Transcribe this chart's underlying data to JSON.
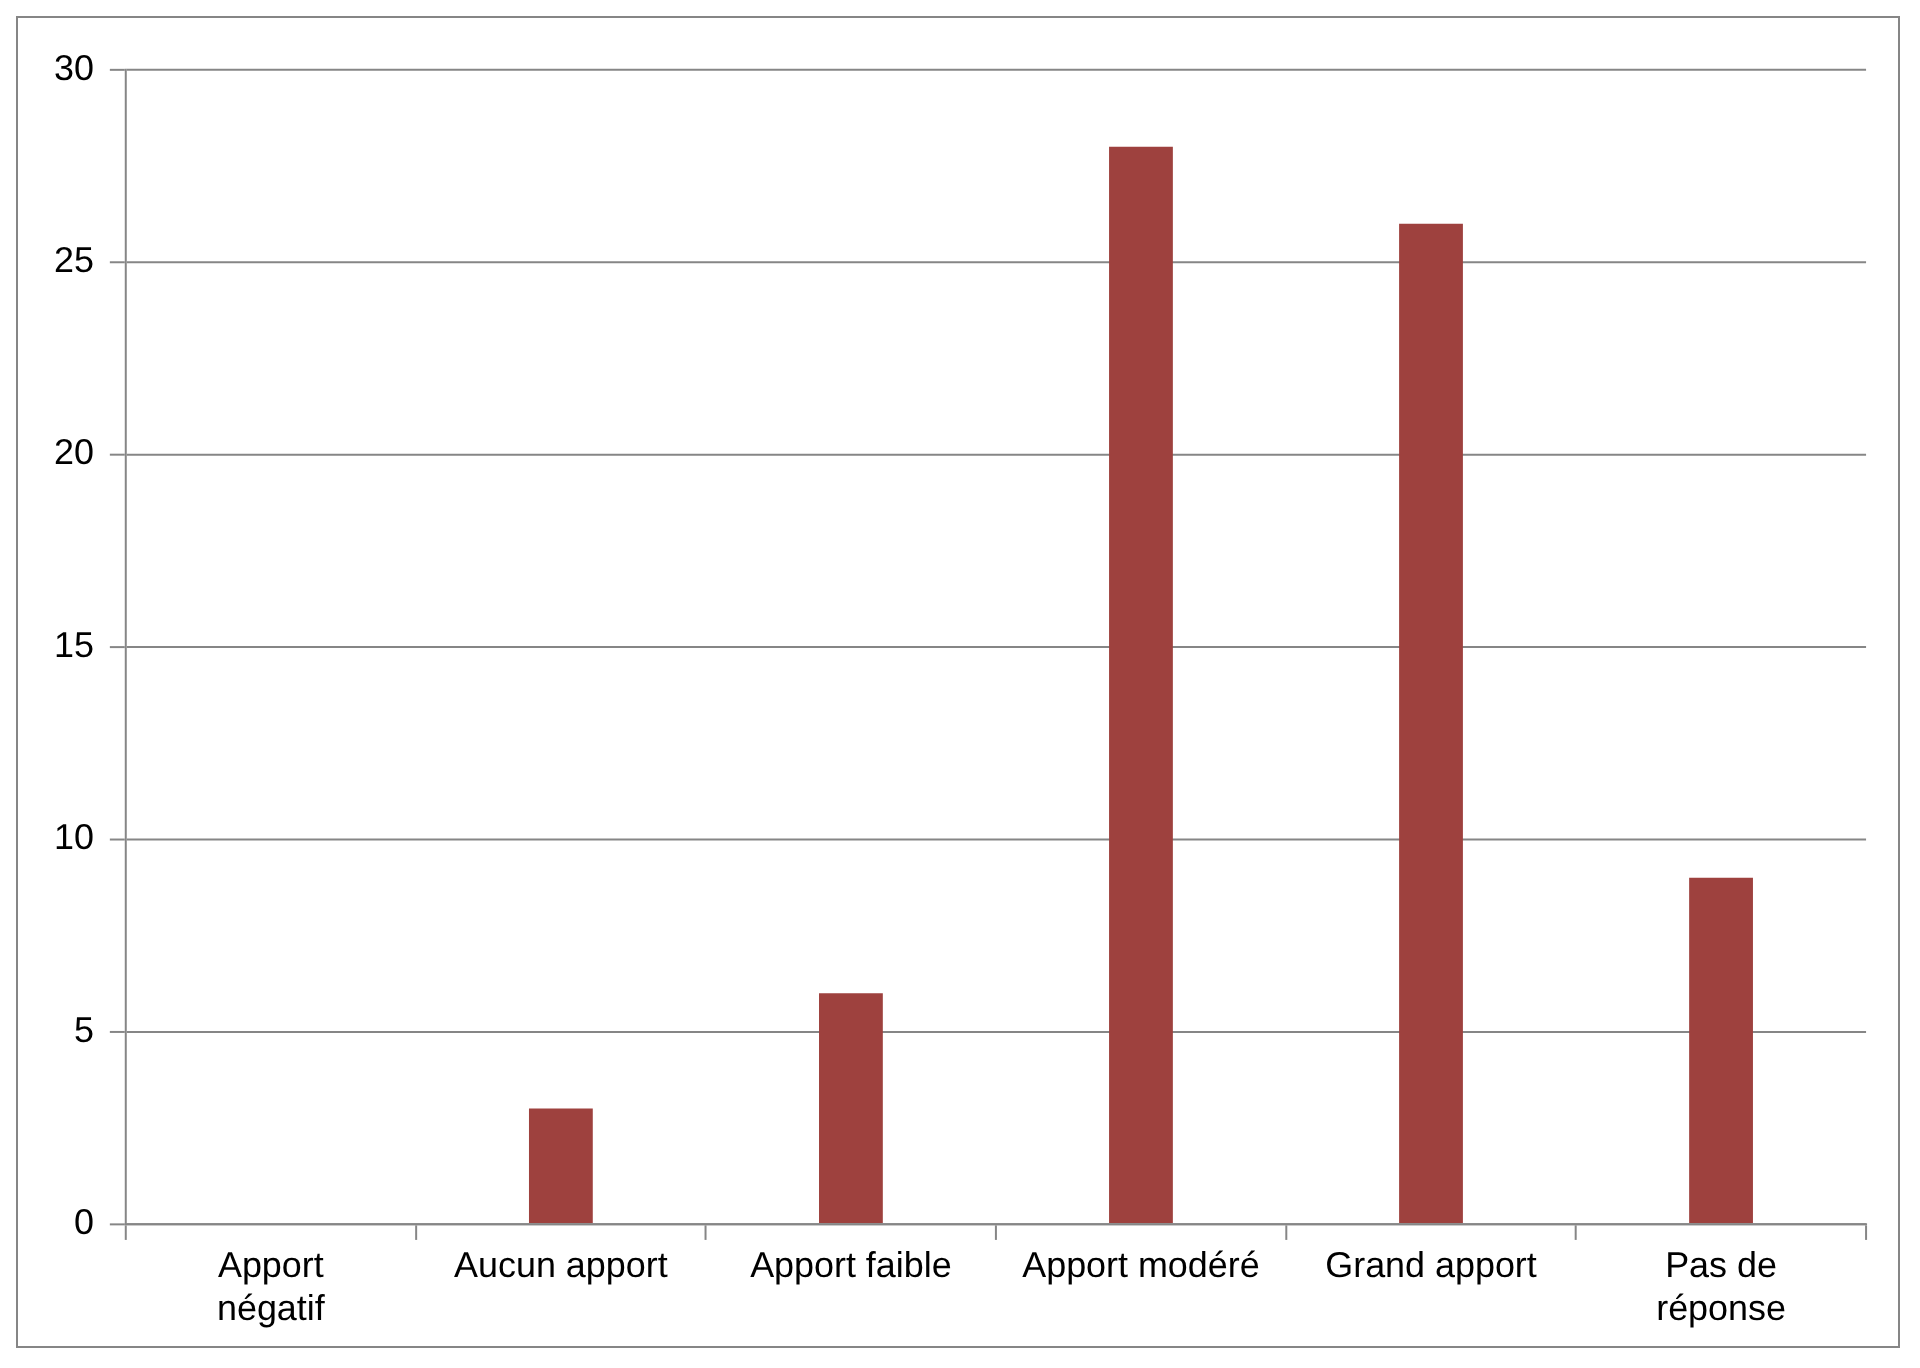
{
  "chart_data": {
    "type": "bar",
    "categories": [
      "Apport négatif",
      "Aucun apport",
      "Apport faible",
      "Apport modéré",
      "Grand apport",
      "Pas de réponse"
    ],
    "values": [
      0,
      3,
      6,
      28,
      26,
      9
    ],
    "color": "#9e413e",
    "ylim": [
      0,
      30
    ],
    "yticks": [
      0,
      5,
      10,
      15,
      20,
      25,
      30
    ],
    "grid": "y",
    "legend": false
  }
}
